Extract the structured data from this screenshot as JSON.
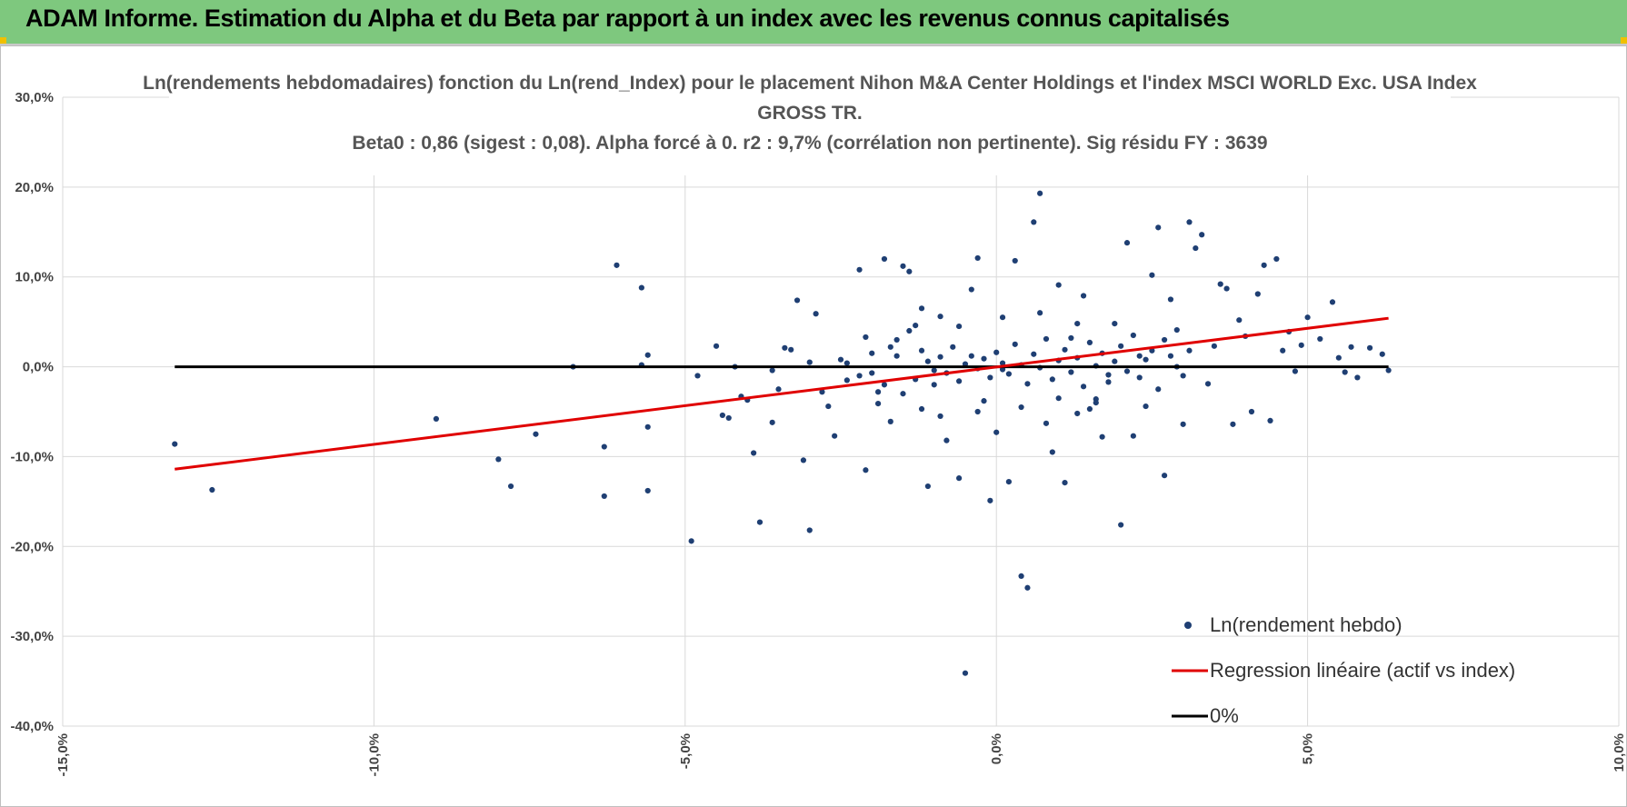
{
  "header": {
    "title": "ADAM Informe. Estimation du Alpha et du Beta par rapport à un index avec les revenus connus capitalisés"
  },
  "colors": {
    "banner": "#7ec87e",
    "points": "#1f3f73",
    "regression": "#e00000",
    "zero_line": "#000000",
    "grid": "#d9d9d9"
  },
  "chart_data": {
    "type": "scatter",
    "title_lines": [
      "Ln(rendements hebdomadaires) fonction du Ln(rend_Index) pour le placement Nihon M&A Center Holdings et l'index MSCI WORLD Exc. USA Index",
      "GROSS TR.",
      "Beta0 : 0,86  (sigest : 0,08). Alpha forcé à 0. r2 : 9,7% (corrélation non pertinente). Sig résidu FY : 3639"
    ],
    "xlim": [
      -0.15,
      0.1
    ],
    "ylim": [
      -0.4,
      0.3
    ],
    "x_ticks": [
      "-15,0%",
      "-10,0%",
      "-5,0%",
      "0,0%",
      "5,0%",
      "10,0%"
    ],
    "y_ticks": [
      "30,0%",
      "20,0%",
      "10,0%",
      "0,0%",
      "-10,0%",
      "-20,0%",
      "-30,0%",
      "-40,0%"
    ],
    "grid": true,
    "legend_position": "bottom-right",
    "series": [
      {
        "name": "Ln(rendement hebdo)",
        "kind": "scatter",
        "color": "#1f3f73",
        "points": [
          [
            -0.132,
            -0.086
          ],
          [
            -0.126,
            -0.137
          ],
          [
            -0.09,
            -0.058
          ],
          [
            -0.08,
            -0.103
          ],
          [
            -0.078,
            -0.133
          ],
          [
            -0.074,
            -0.075
          ],
          [
            -0.068,
            0.0
          ],
          [
            -0.063,
            -0.089
          ],
          [
            -0.063,
            -0.144
          ],
          [
            -0.061,
            0.113
          ],
          [
            -0.057,
            0.088
          ],
          [
            -0.057,
            0.002
          ],
          [
            -0.056,
            -0.067
          ],
          [
            -0.056,
            -0.138
          ],
          [
            -0.056,
            0.013
          ],
          [
            -0.049,
            -0.194
          ],
          [
            -0.048,
            -0.01
          ],
          [
            -0.045,
            0.023
          ],
          [
            -0.044,
            -0.054
          ],
          [
            -0.043,
            -0.057
          ],
          [
            -0.042,
            0.0
          ],
          [
            -0.041,
            -0.033
          ],
          [
            -0.04,
            -0.037
          ],
          [
            -0.039,
            -0.096
          ],
          [
            -0.038,
            -0.173
          ],
          [
            -0.036,
            -0.004
          ],
          [
            -0.035,
            -0.025
          ],
          [
            -0.034,
            0.021
          ],
          [
            -0.033,
            0.019
          ],
          [
            -0.036,
            -0.062
          ],
          [
            -0.032,
            0.074
          ],
          [
            -0.031,
            -0.104
          ],
          [
            -0.03,
            -0.182
          ],
          [
            -0.03,
            0.005
          ],
          [
            -0.029,
            0.059
          ],
          [
            -0.028,
            -0.028
          ],
          [
            -0.027,
            -0.044
          ],
          [
            -0.026,
            -0.077
          ],
          [
            -0.025,
            0.008
          ],
          [
            -0.024,
            -0.015
          ],
          [
            -0.022,
            0.108
          ],
          [
            -0.021,
            -0.115
          ],
          [
            -0.02,
            -0.007
          ],
          [
            -0.019,
            -0.028
          ],
          [
            -0.018,
            0.12
          ],
          [
            -0.017,
            -0.061
          ],
          [
            -0.016,
            0.012
          ],
          [
            -0.015,
            0.112
          ],
          [
            -0.014,
            0.106
          ],
          [
            -0.013,
            0.046
          ],
          [
            -0.012,
            -0.047
          ],
          [
            -0.011,
            -0.133
          ],
          [
            -0.01,
            -0.02
          ],
          [
            -0.009,
            0.056
          ],
          [
            -0.008,
            -0.082
          ],
          [
            -0.006,
            -0.124
          ],
          [
            -0.004,
            0.086
          ],
          [
            -0.003,
            0.121
          ],
          [
            -0.002,
            -0.038
          ],
          [
            -0.001,
            -0.149
          ],
          [
            0.0,
            -0.073
          ],
          [
            0.001,
            -0.003
          ],
          [
            0.002,
            -0.128
          ],
          [
            0.003,
            0.118
          ],
          [
            0.004,
            -0.233
          ],
          [
            0.005,
            -0.246
          ],
          [
            0.006,
            0.161
          ],
          [
            0.007,
            0.193
          ],
          [
            0.008,
            -0.063
          ],
          [
            0.009,
            -0.095
          ],
          [
            0.01,
            0.091
          ],
          [
            0.011,
            -0.129
          ],
          [
            0.012,
            0.032
          ],
          [
            0.013,
            -0.052
          ],
          [
            0.014,
            0.079
          ],
          [
            0.015,
            -0.047
          ],
          [
            0.016,
            -0.036
          ],
          [
            0.017,
            -0.078
          ],
          [
            0.018,
            -0.009
          ],
          [
            0.019,
            0.048
          ],
          [
            0.02,
            -0.176
          ],
          [
            0.021,
            0.138
          ],
          [
            0.022,
            -0.077
          ],
          [
            0.023,
            0.012
          ],
          [
            0.024,
            -0.044
          ],
          [
            0.025,
            0.102
          ],
          [
            0.026,
            0.155
          ],
          [
            0.027,
            -0.121
          ],
          [
            0.028,
            0.075
          ],
          [
            0.029,
            0.041
          ],
          [
            0.03,
            -0.064
          ],
          [
            0.031,
            0.161
          ],
          [
            0.032,
            0.132
          ],
          [
            0.033,
            0.147
          ],
          [
            0.034,
            -0.019
          ],
          [
            0.035,
            0.023
          ],
          [
            0.036,
            0.092
          ],
          [
            0.037,
            0.087
          ],
          [
            0.038,
            -0.064
          ],
          [
            0.039,
            0.052
          ],
          [
            0.04,
            0.034
          ],
          [
            0.041,
            -0.05
          ],
          [
            0.042,
            0.081
          ],
          [
            0.043,
            0.113
          ],
          [
            0.044,
            -0.06
          ],
          [
            0.045,
            0.12
          ],
          [
            0.046,
            0.018
          ],
          [
            0.047,
            0.039
          ],
          [
            0.048,
            -0.005
          ],
          [
            0.049,
            0.024
          ],
          [
            0.05,
            0.055
          ],
          [
            0.052,
            0.031
          ],
          [
            0.054,
            0.072
          ],
          [
            0.055,
            0.01
          ],
          [
            0.056,
            -0.006
          ],
          [
            0.057,
            0.022
          ],
          [
            0.058,
            -0.012
          ],
          [
            0.06,
            0.021
          ],
          [
            0.062,
            0.014
          ],
          [
            0.063,
            -0.004
          ],
          [
            -0.005,
            -0.341
          ],
          [
            -0.013,
            -0.014
          ],
          [
            -0.012,
            0.018
          ],
          [
            -0.011,
            0.006
          ],
          [
            -0.01,
            -0.004
          ],
          [
            -0.009,
            0.011
          ],
          [
            -0.008,
            -0.007
          ],
          [
            -0.007,
            0.022
          ],
          [
            -0.006,
            -0.016
          ],
          [
            -0.005,
            0.003
          ],
          [
            -0.004,
            0.012
          ],
          [
            -0.003,
            -0.002
          ],
          [
            -0.002,
            0.009
          ],
          [
            -0.001,
            -0.012
          ],
          [
            0.0,
            0.016
          ],
          [
            0.001,
            0.004
          ],
          [
            0.002,
            -0.008
          ],
          [
            0.003,
            0.025
          ],
          [
            0.004,
            0.002
          ],
          [
            0.005,
            -0.019
          ],
          [
            0.006,
            0.014
          ],
          [
            0.007,
            -0.001
          ],
          [
            0.008,
            0.031
          ],
          [
            0.009,
            -0.014
          ],
          [
            0.01,
            0.007
          ],
          [
            0.011,
            0.019
          ],
          [
            0.012,
            -0.006
          ],
          [
            0.013,
            0.01
          ],
          [
            0.014,
            -0.022
          ],
          [
            0.015,
            0.027
          ],
          [
            0.016,
            0.001
          ],
          [
            0.017,
            0.015
          ],
          [
            0.018,
            -0.017
          ],
          [
            0.019,
            0.006
          ],
          [
            0.02,
            0.023
          ],
          [
            0.021,
            -0.005
          ],
          [
            0.022,
            0.035
          ],
          [
            0.023,
            -0.012
          ],
          [
            0.024,
            0.008
          ],
          [
            0.025,
            0.018
          ],
          [
            0.026,
            -0.025
          ],
          [
            -0.02,
            0.015
          ],
          [
            -0.018,
            -0.02
          ],
          [
            -0.016,
            0.03
          ],
          [
            -0.022,
            -0.01
          ],
          [
            -0.024,
            0.004
          ],
          [
            -0.015,
            -0.03
          ],
          [
            -0.014,
            0.04
          ],
          [
            -0.017,
            0.022
          ],
          [
            -0.019,
            -0.041
          ],
          [
            -0.021,
            0.033
          ],
          [
            0.028,
            0.012
          ],
          [
            0.03,
            -0.01
          ],
          [
            0.027,
            0.03
          ],
          [
            0.029,
            0.0
          ],
          [
            0.031,
            0.018
          ],
          [
            -0.006,
            0.045
          ],
          [
            -0.003,
            -0.05
          ],
          [
            0.001,
            0.055
          ],
          [
            0.004,
            -0.045
          ],
          [
            0.007,
            0.06
          ],
          [
            0.01,
            -0.035
          ],
          [
            0.013,
            0.048
          ],
          [
            0.016,
            -0.04
          ],
          [
            -0.009,
            -0.055
          ],
          [
            -0.012,
            0.065
          ]
        ]
      },
      {
        "name": "Regression linéaire (actif vs index)",
        "kind": "line",
        "color": "#e00000",
        "points": [
          [
            -0.132,
            -0.114
          ],
          [
            0.063,
            0.054
          ]
        ]
      },
      {
        "name": "0%",
        "kind": "line",
        "color": "#000000",
        "points": [
          [
            -0.132,
            0.0
          ],
          [
            0.063,
            0.0
          ]
        ]
      }
    ]
  }
}
